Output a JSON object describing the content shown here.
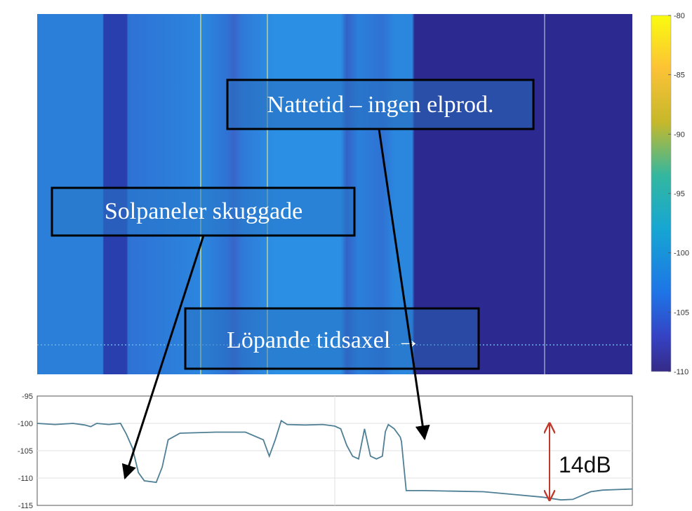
{
  "chart_data": [
    {
      "type": "heatmap",
      "title": "",
      "xlabel": "",
      "ylabel": "",
      "colorbar": {
        "range": [
          -110,
          -80
        ],
        "ticks": [
          -80,
          -85,
          -90,
          -95,
          -100,
          -105,
          -110
        ],
        "tick_labels": [
          "-80",
          "-85",
          "-90",
          "-95",
          "-100",
          "-105",
          "-110"
        ]
      },
      "annotations": [
        {
          "text": "Nattetid – ingen elprod."
        },
        {
          "text": "Solpaneler skuggade"
        },
        {
          "text": "Löpande tidsaxel →"
        }
      ]
    },
    {
      "type": "line",
      "title": "",
      "xlabel": "",
      "ylabel": "",
      "ylim": [
        -115,
        -95
      ],
      "yticks": [
        -95,
        -100,
        -105,
        -110,
        -115
      ],
      "ytick_labels": [
        "-95",
        "-100",
        "-105",
        "-110",
        "-115"
      ],
      "grid": true,
      "x": [
        0,
        0.03,
        0.06,
        0.08,
        0.09,
        0.1,
        0.12,
        0.14,
        0.15,
        0.16,
        0.17,
        0.18,
        0.2,
        0.21,
        0.22,
        0.24,
        0.3,
        0.35,
        0.38,
        0.39,
        0.4,
        0.41,
        0.42,
        0.45,
        0.48,
        0.5,
        0.51,
        0.52,
        0.53,
        0.54,
        0.55,
        0.56,
        0.57,
        0.58,
        0.585,
        0.59,
        0.6,
        0.61,
        0.612,
        0.62,
        0.65,
        0.7,
        0.75,
        0.8,
        0.85,
        0.88,
        0.9,
        0.93,
        0.95,
        1.0
      ],
      "series": [
        {
          "values": [
            -100,
            -100.2,
            -100,
            -100.3,
            -100.6,
            -100,
            -100.2,
            -100,
            -102,
            -104.5,
            -109,
            -110.5,
            -110.8,
            -108,
            -103,
            -101.8,
            -101.6,
            -101.6,
            -103,
            -106,
            -103,
            -99.5,
            -100.2,
            -100.3,
            -100.2,
            -100.5,
            -101,
            -104,
            -106,
            -106.5,
            -101,
            -106,
            -106.5,
            -106,
            -101.5,
            -100.2,
            -101,
            -102.5,
            -103.3,
            -112.3,
            -112.3,
            -112.4,
            -112.5,
            -113,
            -113.5,
            -114,
            -113.9,
            -112.5,
            -112.2,
            -112
          ]
        }
      ],
      "annotations": [
        {
          "text": "14dB",
          "from": -100,
          "to": -114
        }
      ]
    }
  ]
}
